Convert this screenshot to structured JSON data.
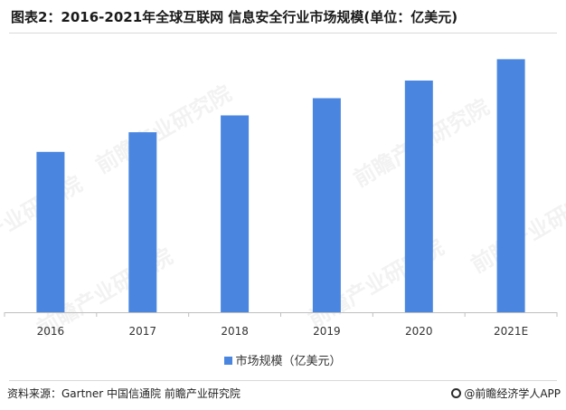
{
  "title": "图表2：2016-2021年全球互联网 信息安全行业市场规模(单位：亿美元)",
  "source": "资料来源：Gartner 中国信通院 前瞻产业研究院",
  "brand": "@前瞻经济学人APP",
  "watermark": "前瞻产业研究院",
  "colors": {
    "bar": "#4a86e0",
    "axis": "#bfbfbf"
  },
  "chart_data": {
    "type": "bar",
    "categories": [
      "2016",
      "2017",
      "2018",
      "2019",
      "2020",
      "2021E"
    ],
    "series": [
      {
        "name": "市场规模（亿美元）",
        "values": [
          1017,
          1141,
          1248,
          1357,
          1469,
          1604
        ]
      }
    ],
    "title": "图表2：2016-2021年全球互联网 信息安全行业市场规模(单位：亿美元)",
    "xlabel": "",
    "ylabel": "",
    "ylim": [
      0,
      1750
    ],
    "grid": false,
    "legend": "bottom",
    "data_labels": false
  }
}
